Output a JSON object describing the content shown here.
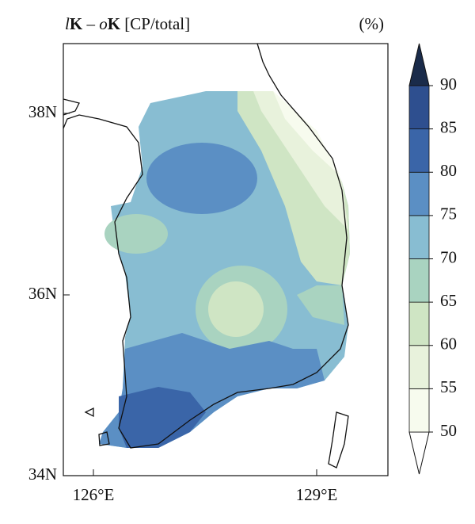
{
  "map": {
    "title_parts": [
      "l",
      "K",
      " – ",
      "o",
      "K",
      " [CP/total]"
    ],
    "unit": "(%)",
    "lat_labels": [
      "38N",
      "36N",
      "34N"
    ],
    "lon_labels": [
      "126°E",
      "129°E"
    ],
    "colorbar": {
      "levels": [
        50,
        55,
        60,
        65,
        70,
        75,
        80,
        85,
        90
      ],
      "colors": [
        "#ffffff",
        "#f7fbee",
        "#e8f2dc",
        "#cfe5c4",
        "#a9d3c0",
        "#88bdd2",
        "#5b8fc4",
        "#3a65a8",
        "#2e4f8f",
        "#1a2b4a"
      ]
    }
  }
}
